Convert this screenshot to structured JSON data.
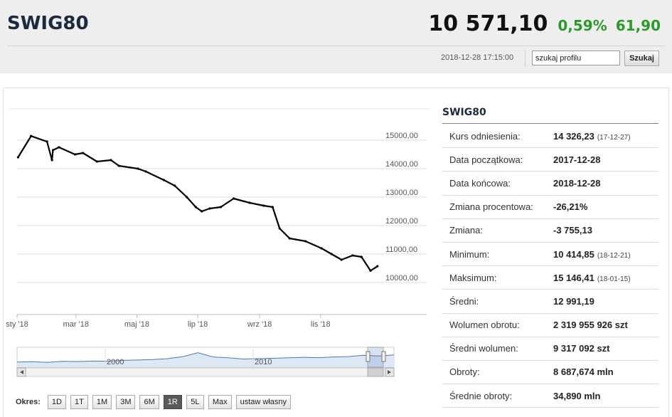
{
  "header": {
    "symbol": "SWIG80",
    "price": "10 571,10",
    "change_pct": "0,59%",
    "change_abs": "61,90",
    "timestamp": "2018-12-28 17:15:00",
    "search_placeholder": "szukaj profilu",
    "search_button": "Szukaj"
  },
  "colors": {
    "positive": "#2a9b2a",
    "brand": "#1b2a3c",
    "line": "#000000",
    "navigator": "#4a7ab0"
  },
  "chart_data": {
    "type": "line",
    "series": [
      {
        "x": [
          "2018-01-02",
          "2018-01-15",
          "2018-01-31",
          "2018-02-05",
          "2018-02-06",
          "2018-02-12",
          "2018-02-28",
          "2018-03-08",
          "2018-03-22",
          "2018-04-05",
          "2018-04-13",
          "2018-05-02",
          "2018-05-10",
          "2018-05-28",
          "2018-06-08",
          "2018-06-20",
          "2018-06-29",
          "2018-07-05",
          "2018-07-13",
          "2018-07-24",
          "2018-08-06",
          "2018-08-22",
          "2018-09-05",
          "2018-09-14",
          "2018-09-21",
          "2018-10-01",
          "2018-10-17",
          "2018-11-02",
          "2018-11-12",
          "2018-11-22",
          "2018-12-03",
          "2018-12-12",
          "2018-12-21",
          "2018-12-28"
        ],
        "values": [
          14400,
          15146,
          14950,
          14300,
          14650,
          14750,
          14500,
          14550,
          14250,
          14300,
          14100,
          14000,
          13900,
          13600,
          13400,
          13000,
          12650,
          12500,
          12600,
          12650,
          12950,
          12800,
          12700,
          12650,
          11900,
          11550,
          11450,
          11200,
          11000,
          10800,
          10950,
          10900,
          10415,
          10571
        ]
      }
    ],
    "y_ticks": [
      "15000,00",
      "14000,00",
      "13000,00",
      "12000,00",
      "11000,00",
      "10000,00"
    ],
    "x_ticks": [
      "sty '18",
      "mar '18",
      "maj '18",
      "lip '18",
      "wrz '18",
      "lis '18"
    ],
    "navigator_labels": [
      "2000",
      "2010"
    ],
    "ylim": [
      10000,
      15300
    ],
    "xlim": [
      "2018-01-01",
      "2018-12-31"
    ],
    "grid": true
  },
  "okres": {
    "label": "Okres:",
    "buttons": [
      "1D",
      "1T",
      "1M",
      "3M",
      "6M",
      "1R",
      "5L",
      "Max",
      "ustaw własny"
    ],
    "active": "1R"
  },
  "info": {
    "title": "SWIG80",
    "rows": [
      {
        "label": "Kurs odniesienia:",
        "value": "14 326,23",
        "extra": "(17-12-27)"
      },
      {
        "label": "Data początkowa:",
        "value": "2017-12-28",
        "extra": ""
      },
      {
        "label": "Data końcowa:",
        "value": "2018-12-28",
        "extra": ""
      },
      {
        "label": "Zmiana procentowa:",
        "value": "-26,21%",
        "extra": ""
      },
      {
        "label": "Zmiana:",
        "value": "-3 755,13",
        "extra": ""
      },
      {
        "label": "Minimum:",
        "value": "10 414,85",
        "extra": "(18-12-21)"
      },
      {
        "label": "Maksimum:",
        "value": "15 146,41",
        "extra": "(18-01-15)"
      },
      {
        "label": "Średni:",
        "value": "12 991,19",
        "extra": ""
      },
      {
        "label": "Wolumen obrotu:",
        "value": "2 319 955 926 szt",
        "extra": ""
      },
      {
        "label": "Średni wolumen:",
        "value": "9 317 092 szt",
        "extra": ""
      },
      {
        "label": "Obroty:",
        "value": "8 687,674 mln",
        "extra": ""
      },
      {
        "label": "Średnie obroty:",
        "value": "34,890 mln",
        "extra": ""
      }
    ]
  }
}
